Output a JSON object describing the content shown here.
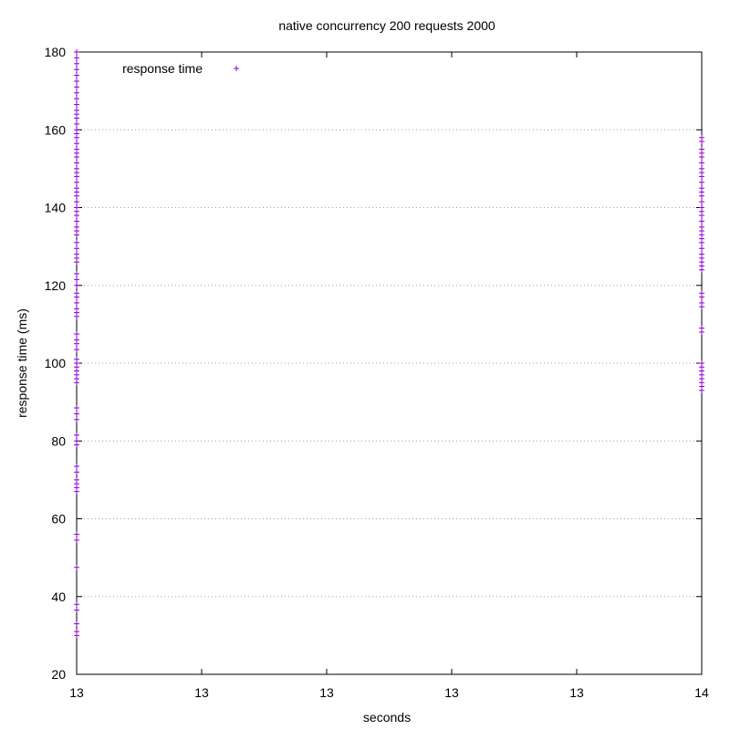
{
  "chart_data": {
    "type": "scatter",
    "title": "native concurrency 200 requests 2000",
    "xlabel": "seconds",
    "ylabel": "response time (ms)",
    "xlim": [
      13,
      14
    ],
    "ylim": [
      20,
      180
    ],
    "x_tick_labels": [
      "13",
      "13",
      "13",
      "13",
      "13",
      "14"
    ],
    "y_ticks": [
      20,
      40,
      60,
      80,
      100,
      120,
      140,
      160,
      180
    ],
    "grid": "horizontal dotted",
    "legend_position": "top-left",
    "marker_color": "#9400d3",
    "series": [
      {
        "name": "response time",
        "points": [
          {
            "x": 13,
            "y": 30
          },
          {
            "x": 13,
            "y": 31
          },
          {
            "x": 13,
            "y": 33
          },
          {
            "x": 13,
            "y": 36.5
          },
          {
            "x": 13,
            "y": 38
          },
          {
            "x": 13,
            "y": 47.5
          },
          {
            "x": 13,
            "y": 54.5
          },
          {
            "x": 13,
            "y": 56
          },
          {
            "x": 13,
            "y": 67
          },
          {
            "x": 13,
            "y": 68
          },
          {
            "x": 13,
            "y": 69
          },
          {
            "x": 13,
            "y": 70
          },
          {
            "x": 13,
            "y": 72
          },
          {
            "x": 13,
            "y": 73.5
          },
          {
            "x": 13,
            "y": 79
          },
          {
            "x": 13,
            "y": 80
          },
          {
            "x": 13,
            "y": 81.5
          },
          {
            "x": 13,
            "y": 85.5
          },
          {
            "x": 13,
            "y": 87
          },
          {
            "x": 13,
            "y": 88.5
          },
          {
            "x": 13,
            "y": 95
          },
          {
            "x": 13,
            "y": 96
          },
          {
            "x": 13,
            "y": 97
          },
          {
            "x": 13,
            "y": 98
          },
          {
            "x": 13,
            "y": 99
          },
          {
            "x": 13,
            "y": 100
          },
          {
            "x": 13,
            "y": 101
          },
          {
            "x": 13,
            "y": 103.5
          },
          {
            "x": 13,
            "y": 105
          },
          {
            "x": 13,
            "y": 106
          },
          {
            "x": 13,
            "y": 107.5
          },
          {
            "x": 13,
            "y": 112
          },
          {
            "x": 13,
            "y": 113
          },
          {
            "x": 13,
            "y": 114
          },
          {
            "x": 13,
            "y": 115.5
          },
          {
            "x": 13,
            "y": 117
          },
          {
            "x": 13,
            "y": 118
          },
          {
            "x": 13,
            "y": 120
          },
          {
            "x": 13,
            "y": 121.5
          },
          {
            "x": 13,
            "y": 123
          },
          {
            "x": 13,
            "y": 126
          },
          {
            "x": 13,
            "y": 127
          },
          {
            "x": 13,
            "y": 128
          },
          {
            "x": 13,
            "y": 129.5
          },
          {
            "x": 13,
            "y": 131
          },
          {
            "x": 13,
            "y": 133
          },
          {
            "x": 13,
            "y": 134
          },
          {
            "x": 13,
            "y": 135
          },
          {
            "x": 13,
            "y": 136.5
          },
          {
            "x": 13,
            "y": 138
          },
          {
            "x": 13,
            "y": 139
          },
          {
            "x": 13,
            "y": 140
          },
          {
            "x": 13,
            "y": 141.5
          },
          {
            "x": 13,
            "y": 143
          },
          {
            "x": 13,
            "y": 144
          },
          {
            "x": 13,
            "y": 145
          },
          {
            "x": 13,
            "y": 146.5
          },
          {
            "x": 13,
            "y": 148
          },
          {
            "x": 13,
            "y": 149
          },
          {
            "x": 13,
            "y": 150
          },
          {
            "x": 13,
            "y": 151.5
          },
          {
            "x": 13,
            "y": 153
          },
          {
            "x": 13,
            "y": 154
          },
          {
            "x": 13,
            "y": 155
          },
          {
            "x": 13,
            "y": 156.5
          },
          {
            "x": 13,
            "y": 158
          },
          {
            "x": 13,
            "y": 159
          },
          {
            "x": 13,
            "y": 160
          },
          {
            "x": 13,
            "y": 161.5
          },
          {
            "x": 13,
            "y": 163
          },
          {
            "x": 13,
            "y": 164
          },
          {
            "x": 13,
            "y": 165
          },
          {
            "x": 13,
            "y": 166.5
          },
          {
            "x": 13,
            "y": 168
          },
          {
            "x": 13,
            "y": 169.5
          },
          {
            "x": 13,
            "y": 171
          },
          {
            "x": 13,
            "y": 172.5
          },
          {
            "x": 13,
            "y": 174
          },
          {
            "x": 13,
            "y": 175.5
          },
          {
            "x": 13,
            "y": 177
          },
          {
            "x": 13,
            "y": 178.5
          },
          {
            "x": 13,
            "y": 180
          },
          {
            "x": 14,
            "y": 93
          },
          {
            "x": 14,
            "y": 94
          },
          {
            "x": 14,
            "y": 95
          },
          {
            "x": 14,
            "y": 96
          },
          {
            "x": 14,
            "y": 97
          },
          {
            "x": 14,
            "y": 98
          },
          {
            "x": 14,
            "y": 99
          },
          {
            "x": 14,
            "y": 100
          },
          {
            "x": 14,
            "y": 108
          },
          {
            "x": 14,
            "y": 109
          },
          {
            "x": 14,
            "y": 114.5
          },
          {
            "x": 14,
            "y": 115.5
          },
          {
            "x": 14,
            "y": 117
          },
          {
            "x": 14,
            "y": 118
          },
          {
            "x": 14,
            "y": 124
          },
          {
            "x": 14,
            "y": 125
          },
          {
            "x": 14,
            "y": 126
          },
          {
            "x": 14,
            "y": 127
          },
          {
            "x": 14,
            "y": 128
          },
          {
            "x": 14,
            "y": 129.5
          },
          {
            "x": 14,
            "y": 131
          },
          {
            "x": 14,
            "y": 132
          },
          {
            "x": 14,
            "y": 133
          },
          {
            "x": 14,
            "y": 134
          },
          {
            "x": 14,
            "y": 135
          },
          {
            "x": 14,
            "y": 136.5
          },
          {
            "x": 14,
            "y": 138
          },
          {
            "x": 14,
            "y": 139
          },
          {
            "x": 14,
            "y": 140
          },
          {
            "x": 14,
            "y": 141.5
          },
          {
            "x": 14,
            "y": 143
          },
          {
            "x": 14,
            "y": 144
          },
          {
            "x": 14,
            "y": 145
          },
          {
            "x": 14,
            "y": 146.5
          },
          {
            "x": 14,
            "y": 148
          },
          {
            "x": 14,
            "y": 149
          },
          {
            "x": 14,
            "y": 150
          },
          {
            "x": 14,
            "y": 151.5
          },
          {
            "x": 14,
            "y": 153
          },
          {
            "x": 14,
            "y": 154
          },
          {
            "x": 14,
            "y": 155
          },
          {
            "x": 14,
            "y": 157
          },
          {
            "x": 14,
            "y": 158
          }
        ]
      }
    ]
  }
}
